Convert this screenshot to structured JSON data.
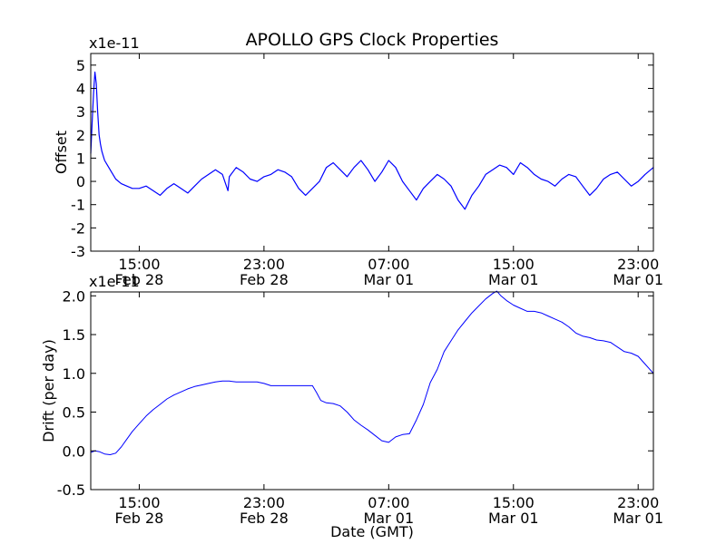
{
  "figure": {
    "title": "APOLLO GPS Clock Properties"
  },
  "colors": {
    "line": "#0000ff",
    "axes": "#000000",
    "background": "#ffffff"
  },
  "chart_data": [
    {
      "type": "line",
      "title": "APOLLO GPS Clock Properties",
      "xlabel": "",
      "ylabel": "Offset",
      "scale_label": "x1e-11",
      "xlim": [
        0,
        40.6
      ],
      "ylim": [
        -3,
        5.5
      ],
      "yticks": [
        -3,
        -2,
        -1,
        0,
        1,
        2,
        3,
        4,
        5
      ],
      "ytick_labels": [
        "-3",
        "-2",
        "-1",
        "0",
        "1",
        "2",
        "3",
        "4",
        "5"
      ],
      "xticks": [
        {
          "x": 3.5,
          "time": "15:00",
          "date": "Feb 28"
        },
        {
          "x": 12.5,
          "time": "23:00",
          "date": "Feb 28"
        },
        {
          "x": 21.5,
          "time": "07:00",
          "date": "Mar 01"
        },
        {
          "x": 30.5,
          "time": "15:00",
          "date": "Mar 01"
        },
        {
          "x": 39.5,
          "time": "23:00",
          "date": "Mar 01"
        }
      ],
      "grid": false,
      "series": [
        {
          "x": [
            0,
            0.1,
            0.2,
            0.3,
            0.4,
            0.5,
            0.6,
            0.7,
            0.8,
            0.9,
            1.0,
            1.2,
            1.5,
            1.8,
            2.2,
            2.6,
            3.0,
            3.5,
            4.0,
            4.5,
            5.0,
            5.5,
            6.0,
            6.5,
            7.0,
            7.5,
            8.0,
            8.5,
            9.0,
            9.5,
            9.9,
            10.0,
            10.5,
            11.0,
            11.5,
            12.0,
            12.5,
            13.0,
            13.5,
            14.0,
            14.5,
            15.0,
            15.5,
            16.0,
            16.5,
            17.0,
            17.5,
            18.0,
            18.5,
            19.0,
            19.5,
            20.0,
            20.5,
            21.0,
            21.5,
            22.0,
            22.5,
            23.0,
            23.5,
            24.0,
            24.5,
            25.0,
            25.5,
            26.0,
            26.5,
            27.0,
            27.5,
            28.0,
            28.5,
            29.0,
            29.5,
            30.0,
            30.5,
            31.0,
            31.5,
            32.0,
            32.5,
            33.0,
            33.5,
            34.0,
            34.5,
            35.0,
            35.5,
            36.0,
            36.5,
            37.0,
            37.5,
            38.0,
            38.5,
            39.0,
            39.5,
            40.0,
            40.6
          ],
          "y": [
            1.2,
            2.5,
            3.8,
            4.7,
            4.2,
            3.0,
            2.0,
            1.6,
            1.3,
            1.1,
            0.9,
            0.7,
            0.4,
            0.1,
            -0.1,
            -0.2,
            -0.3,
            -0.3,
            -0.2,
            -0.4,
            -0.6,
            -0.3,
            -0.1,
            -0.3,
            -0.5,
            -0.2,
            0.1,
            0.3,
            0.5,
            0.3,
            -0.4,
            0.2,
            0.6,
            0.4,
            0.1,
            0.0,
            0.2,
            0.3,
            0.5,
            0.4,
            0.2,
            -0.3,
            -0.6,
            -0.3,
            0.0,
            0.6,
            0.8,
            0.5,
            0.2,
            0.6,
            0.9,
            0.5,
            0.0,
            0.4,
            0.9,
            0.6,
            0.0,
            -0.4,
            -0.8,
            -0.3,
            0.0,
            0.3,
            0.1,
            -0.2,
            -0.8,
            -1.2,
            -0.6,
            -0.2,
            0.3,
            0.5,
            0.7,
            0.6,
            0.3,
            0.8,
            0.6,
            0.3,
            0.1,
            0.0,
            -0.2,
            0.1,
            0.3,
            0.2,
            -0.2,
            -0.6,
            -0.3,
            0.1,
            0.3,
            0.4,
            0.1,
            -0.2,
            0.0,
            0.3,
            0.6
          ]
        }
      ]
    },
    {
      "type": "line",
      "xlabel": "Date (GMT)",
      "ylabel": "Drift (per day)",
      "scale_label": "x1e-11",
      "xlim": [
        0,
        40.6
      ],
      "ylim": [
        -0.5,
        2.05
      ],
      "yticks": [
        -0.5,
        0.0,
        0.5,
        1.0,
        1.5,
        2.0
      ],
      "ytick_labels": [
        "-0.5",
        "0.0",
        "0.5",
        "1.0",
        "1.5",
        "2.0"
      ],
      "xticks": [
        {
          "x": 3.5,
          "time": "15:00",
          "date": "Feb 28"
        },
        {
          "x": 12.5,
          "time": "23:00",
          "date": "Feb 28"
        },
        {
          "x": 21.5,
          "time": "07:00",
          "date": "Mar 01"
        },
        {
          "x": 30.5,
          "time": "15:00",
          "date": "Mar 01"
        },
        {
          "x": 39.5,
          "time": "23:00",
          "date": "Mar 01"
        }
      ],
      "grid": false,
      "series": [
        {
          "x": [
            0,
            0.3,
            0.6,
            1.0,
            1.4,
            1.8,
            2.2,
            2.6,
            3.0,
            3.5,
            4.0,
            4.5,
            5.0,
            5.5,
            6.0,
            6.5,
            7.0,
            7.5,
            8.0,
            8.5,
            9.0,
            9.5,
            10.0,
            10.5,
            11.0,
            11.5,
            12.0,
            12.5,
            13.0,
            13.5,
            14.0,
            14.5,
            15.0,
            15.5,
            16.0,
            16.3,
            16.6,
            17.0,
            17.5,
            18.0,
            18.5,
            19.0,
            19.5,
            20.0,
            20.5,
            21.0,
            21.5,
            22.0,
            22.5,
            23.0,
            23.5,
            24.0,
            24.5,
            25.0,
            25.5,
            26.0,
            26.5,
            27.0,
            27.5,
            28.0,
            28.5,
            29.0,
            29.3,
            29.6,
            30.0,
            30.5,
            31.0,
            31.5,
            32.0,
            32.5,
            33.0,
            33.5,
            34.0,
            34.5,
            35.0,
            35.5,
            36.0,
            36.5,
            37.0,
            37.5,
            38.0,
            38.5,
            39.0,
            39.5,
            40.0,
            40.6
          ],
          "y": [
            -0.02,
            0.0,
            -0.01,
            -0.04,
            -0.05,
            -0.03,
            0.05,
            0.15,
            0.25,
            0.35,
            0.45,
            0.53,
            0.6,
            0.67,
            0.72,
            0.76,
            0.8,
            0.83,
            0.85,
            0.87,
            0.89,
            0.9,
            0.9,
            0.89,
            0.89,
            0.89,
            0.89,
            0.87,
            0.84,
            0.84,
            0.84,
            0.84,
            0.84,
            0.84,
            0.84,
            0.75,
            0.65,
            0.62,
            0.61,
            0.58,
            0.5,
            0.4,
            0.33,
            0.27,
            0.2,
            0.13,
            0.11,
            0.18,
            0.21,
            0.22,
            0.4,
            0.6,
            0.88,
            1.05,
            1.28,
            1.42,
            1.56,
            1.67,
            1.78,
            1.87,
            1.96,
            2.03,
            2.06,
            2.0,
            1.94,
            1.88,
            1.84,
            1.8,
            1.8,
            1.78,
            1.74,
            1.7,
            1.66,
            1.6,
            1.52,
            1.48,
            1.46,
            1.43,
            1.42,
            1.4,
            1.34,
            1.28,
            1.26,
            1.22,
            1.12,
            1.0
          ]
        }
      ]
    }
  ]
}
